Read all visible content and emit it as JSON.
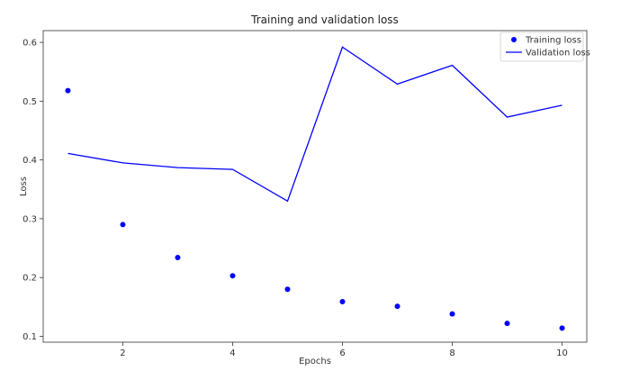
{
  "chart_data": {
    "type": "line",
    "title": "Training and validation loss",
    "xlabel": "Epochs",
    "ylabel": "Loss",
    "xlim": [
      0.55,
      10.45
    ],
    "ylim": [
      0.09,
      0.62
    ],
    "xticks": [
      2,
      4,
      6,
      8,
      10
    ],
    "yticks": [
      0.1,
      0.2,
      0.3,
      0.4,
      0.5,
      0.6
    ],
    "grid": false,
    "legend": "top-right",
    "x": [
      1,
      2,
      3,
      4,
      5,
      6,
      7,
      8,
      9,
      10
    ],
    "series": [
      {
        "name": "Training loss",
        "kind": "scatter",
        "color": "#0000ff",
        "values": [
          0.518,
          0.29,
          0.234,
          0.203,
          0.18,
          0.159,
          0.151,
          0.138,
          0.122,
          0.114
        ]
      },
      {
        "name": "Validation loss",
        "kind": "line",
        "color": "#0000ff",
        "values": [
          0.411,
          0.395,
          0.387,
          0.384,
          0.33,
          0.592,
          0.529,
          0.561,
          0.473,
          0.493
        ]
      }
    ]
  }
}
